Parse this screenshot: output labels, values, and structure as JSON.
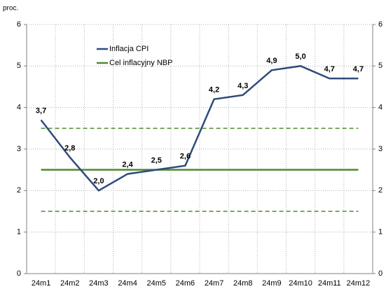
{
  "chart_data": {
    "type": "line",
    "y_unit": "proc.",
    "categories": [
      "24m1",
      "24m2",
      "24m3",
      "24m4",
      "24m5",
      "24m6",
      "24m7",
      "24m8",
      "24m9",
      "24m10",
      "24m11",
      "24m12"
    ],
    "series": [
      {
        "name": "Inflacja CPI",
        "color": "#2f4b7c",
        "values": [
          3.7,
          2.8,
          2.0,
          2.4,
          2.5,
          2.6,
          4.2,
          4.3,
          4.9,
          5.0,
          4.7,
          4.7
        ],
        "value_labels": [
          "3,7",
          "2,8",
          "2,0",
          "2,4",
          "2,5",
          "2,6",
          "4,2",
          "4,3",
          "4,9",
          "5,0",
          "4,7",
          "4,7"
        ]
      },
      {
        "name": "Cel inflacyjny NBP",
        "color": "#4e8a2e",
        "values": [
          2.5,
          2.5,
          2.5,
          2.5,
          2.5,
          2.5,
          2.5,
          2.5,
          2.5,
          2.5,
          2.5,
          2.5
        ]
      }
    ],
    "tolerance_band": [
      1.5,
      3.5
    ],
    "band_color": "#4e8a2e",
    "ylim": [
      0,
      6
    ],
    "yticks": [
      0,
      1,
      2,
      3,
      4,
      5,
      6
    ],
    "y2lim": [
      0,
      6
    ],
    "y2ticks": [
      0,
      1,
      2,
      3,
      4,
      5,
      6
    ],
    "grid": true
  }
}
